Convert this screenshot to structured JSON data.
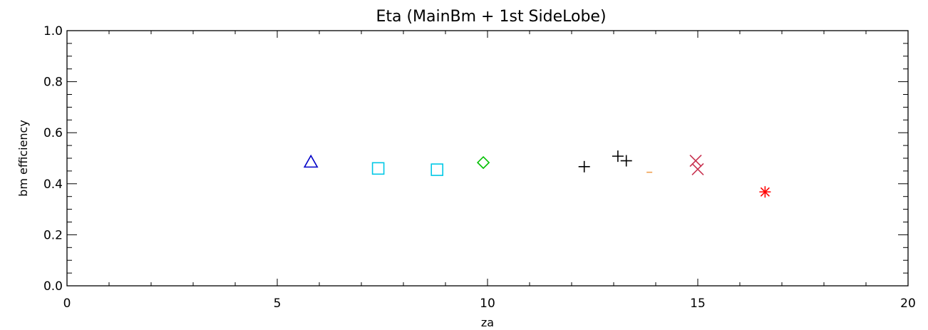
{
  "chart_data": {
    "type": "scatter",
    "title": "Eta (MainBm + 1st SideLobe)",
    "xlabel": "za",
    "ylabel": "bm efficiency",
    "xlim": [
      0,
      20
    ],
    "ylim": [
      0.0,
      1.0
    ],
    "x_ticks": [
      "0",
      "5",
      "10",
      "15",
      "20"
    ],
    "y_ticks": [
      "0.0",
      "0.2",
      "0.4",
      "0.6",
      "0.8",
      "1.0"
    ],
    "grid": false,
    "series": [
      {
        "marker": "triangle",
        "color": "#0000c8",
        "points": [
          [
            5.8,
            0.485
          ]
        ]
      },
      {
        "marker": "square",
        "color": "#00c8e6",
        "points": [
          [
            7.4,
            0.46
          ],
          [
            8.8,
            0.455
          ]
        ]
      },
      {
        "marker": "diamond",
        "color": "#00c000",
        "points": [
          [
            9.9,
            0.483
          ]
        ]
      },
      {
        "marker": "plus",
        "color": "#000000",
        "points": [
          [
            12.3,
            0.467
          ],
          [
            13.1,
            0.508
          ],
          [
            13.3,
            0.49
          ]
        ]
      },
      {
        "marker": "dash",
        "color": "#f0a050",
        "points": [
          [
            13.85,
            0.445
          ]
        ]
      },
      {
        "marker": "x",
        "color": "#c83250",
        "points": [
          [
            14.95,
            0.49
          ],
          [
            15.0,
            0.457
          ]
        ]
      },
      {
        "marker": "asterisk",
        "color": "#ff0000",
        "points": [
          [
            16.6,
            0.368
          ]
        ]
      }
    ]
  }
}
